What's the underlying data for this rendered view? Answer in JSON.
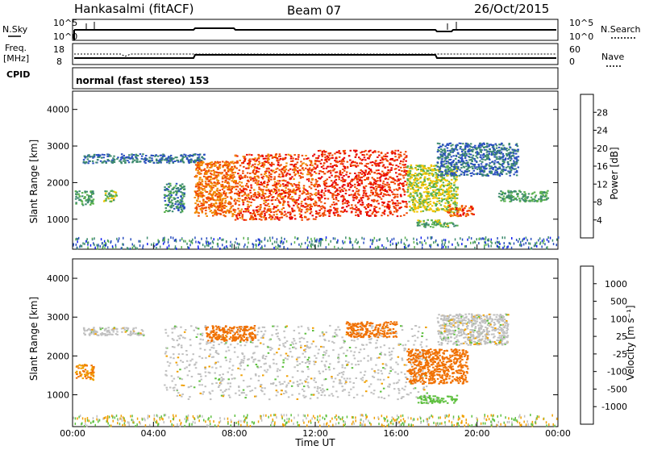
{
  "header": {
    "station": "Hankasalmi (fitACF)",
    "beam": "Beam 07",
    "date": "26/Oct/2015"
  },
  "noise_panel": {
    "left_label": "N.Sky",
    "right_label": "N.Search",
    "ticks_left": [
      "10^5",
      "10^0"
    ],
    "ticks_right": [
      "10^5",
      "10^0"
    ]
  },
  "freq_panel": {
    "left_label_line1": "Freq.",
    "left_label_line2": "[MHz]",
    "right_label": "Nave",
    "ticks_left": [
      "18",
      "8"
    ],
    "ticks_right": [
      "60",
      "0"
    ]
  },
  "cpid": {
    "label": "CPID",
    "mode_text": "normal (fast stereo) 153"
  },
  "power_panel": {
    "ylabel": "Slant Range [km]",
    "yticks": [
      "1000",
      "2000",
      "3000",
      "4000"
    ],
    "colorbar_label": "Power [dB]",
    "colorbar_ticks": [
      "4",
      "8",
      "12",
      "16",
      "20",
      "24",
      "28"
    ],
    "colors": [
      "#0f1ef0",
      "#2a4fbf",
      "#3d8a6e",
      "#58b04c",
      "#f2c400",
      "#f28a00",
      "#f04800",
      "#e80000"
    ]
  },
  "velocity_panel": {
    "ylabel": "Slant Range [km]",
    "yticks": [
      "1000",
      "2000",
      "3000",
      "4000"
    ],
    "colorbar_label": "Velocity [m s⁻¹]",
    "colorbar_ticks": [
      "1000",
      "500",
      "100",
      "25",
      "-25",
      "-100",
      "-500",
      "-1000"
    ],
    "colors": [
      "#1632c8",
      "#2e6ed0",
      "#3d8a6e",
      "#5fc040",
      "#c0c0c0",
      "#f0a000",
      "#f07000",
      "#f03000",
      "#e80000"
    ]
  },
  "xaxis": {
    "label": "Time UT",
    "ticks": [
      "00:00",
      "04:00",
      "08:00",
      "12:00",
      "16:00",
      "20:00",
      "00:00"
    ]
  },
  "chart_data": [
    {
      "type": "heatmap",
      "title": "Power [dB]",
      "xlabel": "Time UT",
      "ylabel": "Slant Range [km]",
      "xlim": [
        "00:00",
        "24:00"
      ],
      "ylim": [
        180,
        4500
      ],
      "zlim": [
        0,
        30
      ],
      "regions": [
        {
          "t_start": 0.5,
          "t_end": 6.5,
          "r_low": 2550,
          "r_high": 2800,
          "value": 8
        },
        {
          "t_start": 0.1,
          "t_end": 1.0,
          "r_low": 1400,
          "r_high": 1800,
          "value": 12
        },
        {
          "t_start": 1.5,
          "t_end": 2.2,
          "r_low": 1500,
          "r_high": 1800,
          "value": 14
        },
        {
          "t_start": 4.5,
          "t_end": 5.5,
          "r_low": 1200,
          "r_high": 2000,
          "value": 10
        },
        {
          "t_start": 6.0,
          "t_end": 8.0,
          "r_low": 1100,
          "r_high": 2600,
          "value": 24
        },
        {
          "t_start": 8.0,
          "t_end": 12.0,
          "r_low": 1000,
          "r_high": 2800,
          "value": 26
        },
        {
          "t_start": 12.0,
          "t_end": 16.5,
          "r_low": 1100,
          "r_high": 2900,
          "value": 28
        },
        {
          "t_start": 16.5,
          "t_end": 19.0,
          "r_low": 1200,
          "r_high": 2500,
          "value": 16
        },
        {
          "t_start": 18.5,
          "t_end": 19.8,
          "r_low": 1100,
          "r_high": 1400,
          "value": 26
        },
        {
          "t_start": 17.0,
          "t_end": 19.0,
          "r_low": 800,
          "r_high": 1000,
          "value": 14
        },
        {
          "t_start": 18.0,
          "t_end": 22.0,
          "r_low": 2200,
          "r_high": 3100,
          "value": 8
        },
        {
          "t_start": 21.0,
          "t_end": 23.5,
          "r_low": 1500,
          "r_high": 1800,
          "value": 12
        }
      ]
    },
    {
      "type": "heatmap",
      "title": "Velocity [m s⁻¹]",
      "xlabel": "Time UT",
      "ylabel": "Slant Range [km]",
      "xlim": [
        "00:00",
        "24:00"
      ],
      "ylim": [
        180,
        4500
      ],
      "zlim": [
        -1000,
        1000
      ],
      "regions": [
        {
          "t_start": 0.5,
          "t_end": 3.5,
          "r_low": 2550,
          "r_high": 2750,
          "value": 0
        },
        {
          "t_start": 0.1,
          "t_end": 1.0,
          "r_low": 1400,
          "r_high": 1800,
          "value": -100
        },
        {
          "t_start": 4.5,
          "t_end": 17.5,
          "r_low": 900,
          "r_high": 2800,
          "value": 0
        },
        {
          "t_start": 6.5,
          "t_end": 9.0,
          "r_low": 2400,
          "r_high": 2800,
          "value": -300
        },
        {
          "t_start": 13.5,
          "t_end": 16.0,
          "r_low": 2500,
          "r_high": 2900,
          "value": -200
        },
        {
          "t_start": 16.5,
          "t_end": 19.5,
          "r_low": 1300,
          "r_high": 2200,
          "value": -300
        },
        {
          "t_start": 18.0,
          "t_end": 21.5,
          "r_low": 2300,
          "r_high": 3100,
          "value": 0
        },
        {
          "t_start": 17.0,
          "t_end": 19.0,
          "r_low": 800,
          "r_high": 1000,
          "value": 50
        }
      ]
    }
  ]
}
